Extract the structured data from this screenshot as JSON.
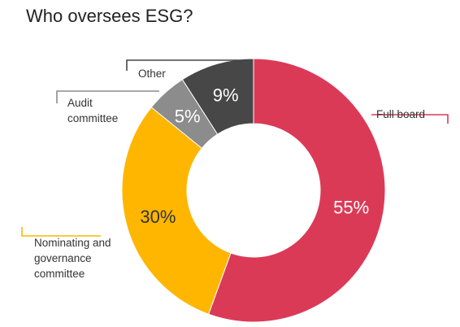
{
  "chart_data": {
    "type": "pie",
    "title": "Who oversees ESG?",
    "slices": [
      {
        "label": "Full board",
        "value": 55,
        "display": "55%",
        "color": "#DB3A57",
        "text_color": "#ffffff"
      },
      {
        "label": "Nominating and governance committee",
        "value": 30,
        "display": "30%",
        "color": "#FFB600",
        "text_color": "#333333"
      },
      {
        "label": "Audit committee",
        "value": 5,
        "display": "5%",
        "color": "#8C8C8C",
        "text_color": "#ffffff"
      },
      {
        "label": "Other",
        "value": 9,
        "display": "9%",
        "color": "#474747",
        "text_color": "#ffffff"
      }
    ],
    "donut": true,
    "legend": "callouts"
  }
}
